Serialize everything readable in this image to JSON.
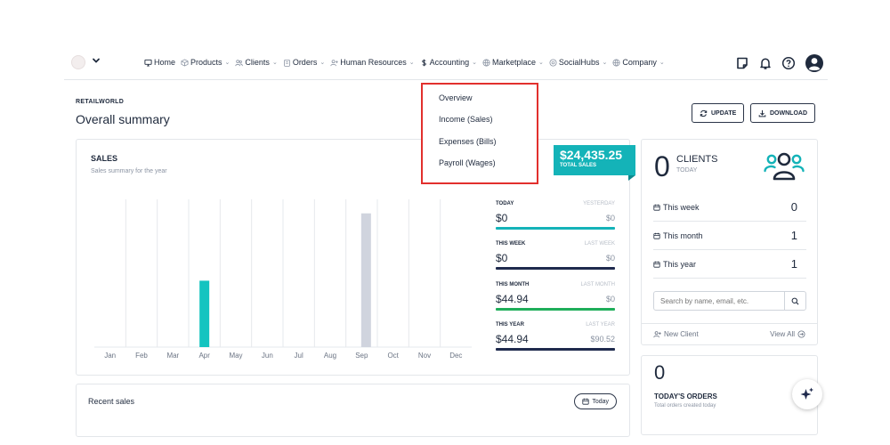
{
  "nav": {
    "items": [
      {
        "label": "Home",
        "icon": "monitor-icon",
        "chevron": false
      },
      {
        "label": "Products",
        "icon": "box-icon",
        "chevron": true
      },
      {
        "label": "Clients",
        "icon": "users-icon",
        "chevron": true
      },
      {
        "label": "Orders",
        "icon": "clipboard-icon",
        "chevron": true
      },
      {
        "label": "Human Resources",
        "icon": "user-plus-icon",
        "chevron": true
      },
      {
        "label": "Accounting",
        "icon": "dollar-icon",
        "chevron": true
      },
      {
        "label": "Marketplace",
        "icon": "globe-icon",
        "chevron": true
      },
      {
        "label": "SocialHubs",
        "icon": "circle-icon",
        "chevron": true
      },
      {
        "label": "Company",
        "icon": "globe-icon",
        "chevron": true
      }
    ]
  },
  "header": {
    "breadcrumb": "RETAILWORLD",
    "title": "Overall summary",
    "update_label": "UPDATE",
    "download_label": "DOWNLOAD"
  },
  "accounting_menu": {
    "items": [
      "Overview",
      "Income (Sales)",
      "Expenses (Bills)",
      "Payroll (Wages)"
    ]
  },
  "sales": {
    "title": "SALES",
    "subtitle": "Sales summary for the year",
    "total_amount": "$24,435.25",
    "total_label": "TOTAL SALES",
    "stats": [
      {
        "label": "TODAY",
        "value": "$0",
        "prev_label": "YESTERDAY",
        "prev_value": "$0",
        "color": "#14b3b8"
      },
      {
        "label": "THIS WEEK",
        "value": "$0",
        "prev_label": "LAST WEEK",
        "prev_value": "$0",
        "color": "#1f2a4d"
      },
      {
        "label": "THIS MONTH",
        "value": "$44.94",
        "prev_label": "LAST MONTH",
        "prev_value": "$0",
        "color": "#1fae5a"
      },
      {
        "label": "THIS YEAR",
        "value": "$44.94",
        "prev_label": "LAST YEAR",
        "prev_value": "$90.52",
        "color": "#1f2a4d"
      }
    ]
  },
  "chart_data": {
    "type": "bar",
    "categories": [
      "Jan",
      "Feb",
      "Mar",
      "Apr",
      "May",
      "Jun",
      "Jul",
      "Aug",
      "Sep",
      "Oct",
      "Nov",
      "Dec"
    ],
    "series": [
      {
        "values": [
          0,
          0,
          0,
          44.94,
          0,
          0,
          0,
          0,
          0,
          0,
          0,
          0
        ],
        "color": "#14c4c0"
      },
      {
        "values": [
          0,
          0,
          0,
          0,
          0,
          0,
          0,
          0,
          90.52,
          0,
          0,
          0
        ],
        "color": "#d0d4de"
      }
    ],
    "ylim": [
      0,
      100
    ],
    "grid": true
  },
  "recent": {
    "title": "Recent sales",
    "filter_label": "Today"
  },
  "clients": {
    "count": "0",
    "title": "CLIENTS",
    "subtitle": "TODAY",
    "rows": [
      {
        "label": "This week",
        "value": "0"
      },
      {
        "label": "This month",
        "value": "1"
      },
      {
        "label": "This year",
        "value": "1"
      }
    ],
    "search_placeholder": "Search by name, email, etc.",
    "new_client_label": "New Client",
    "view_all_label": "View All"
  },
  "orders": {
    "count": "0",
    "title": "TODAY'S ORDERS",
    "subtitle": "Total orders created today"
  }
}
